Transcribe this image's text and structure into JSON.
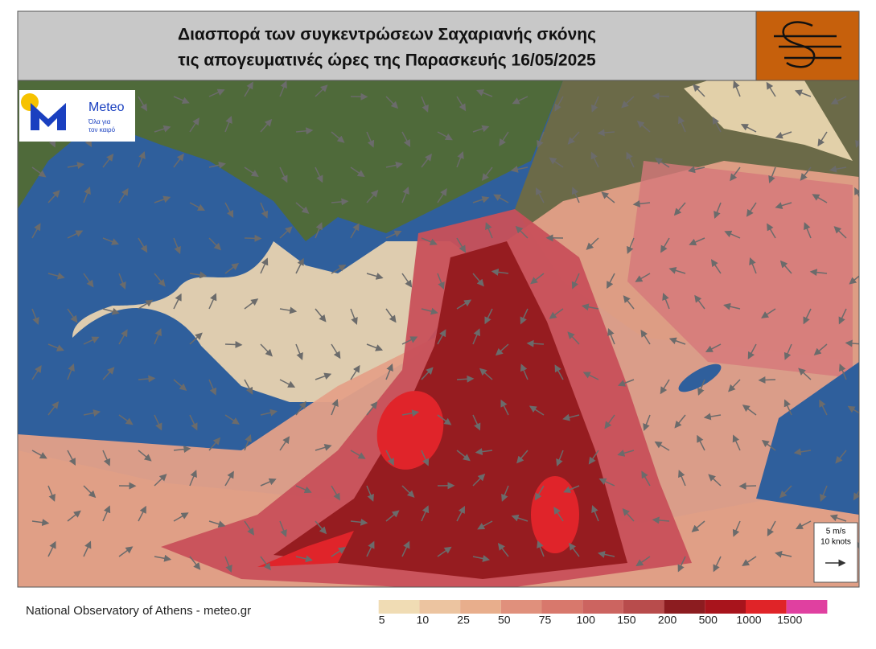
{
  "header": {
    "title_lines": [
      "Διασπορά των συγκεντρώσεων Σαχαριανής σκόνης",
      "τις απογευματινές ώρες της Παρασκευής 16/05/2025"
    ]
  },
  "logo": {
    "name": "Meteo",
    "tagline_lines": [
      "Όλα για",
      "τον καιρό"
    ]
  },
  "wind_scale": {
    "lines": [
      "5 m/s",
      "10 knots"
    ]
  },
  "footer": {
    "credit": "National Observatory of Athens - meteo.gr"
  },
  "legend": {
    "colors": [
      "#ffffff",
      "#f0dcb4",
      "#ecc4a0",
      "#e8ae8c",
      "#e0907c",
      "#d8786c",
      "#cc6460",
      "#b84c4c",
      "#8c1c20",
      "#a8141c",
      "#e02428",
      "#e040a0"
    ],
    "labels": [
      5,
      10,
      25,
      50,
      75,
      100,
      150,
      200,
      500,
      1000,
      1500
    ]
  }
}
